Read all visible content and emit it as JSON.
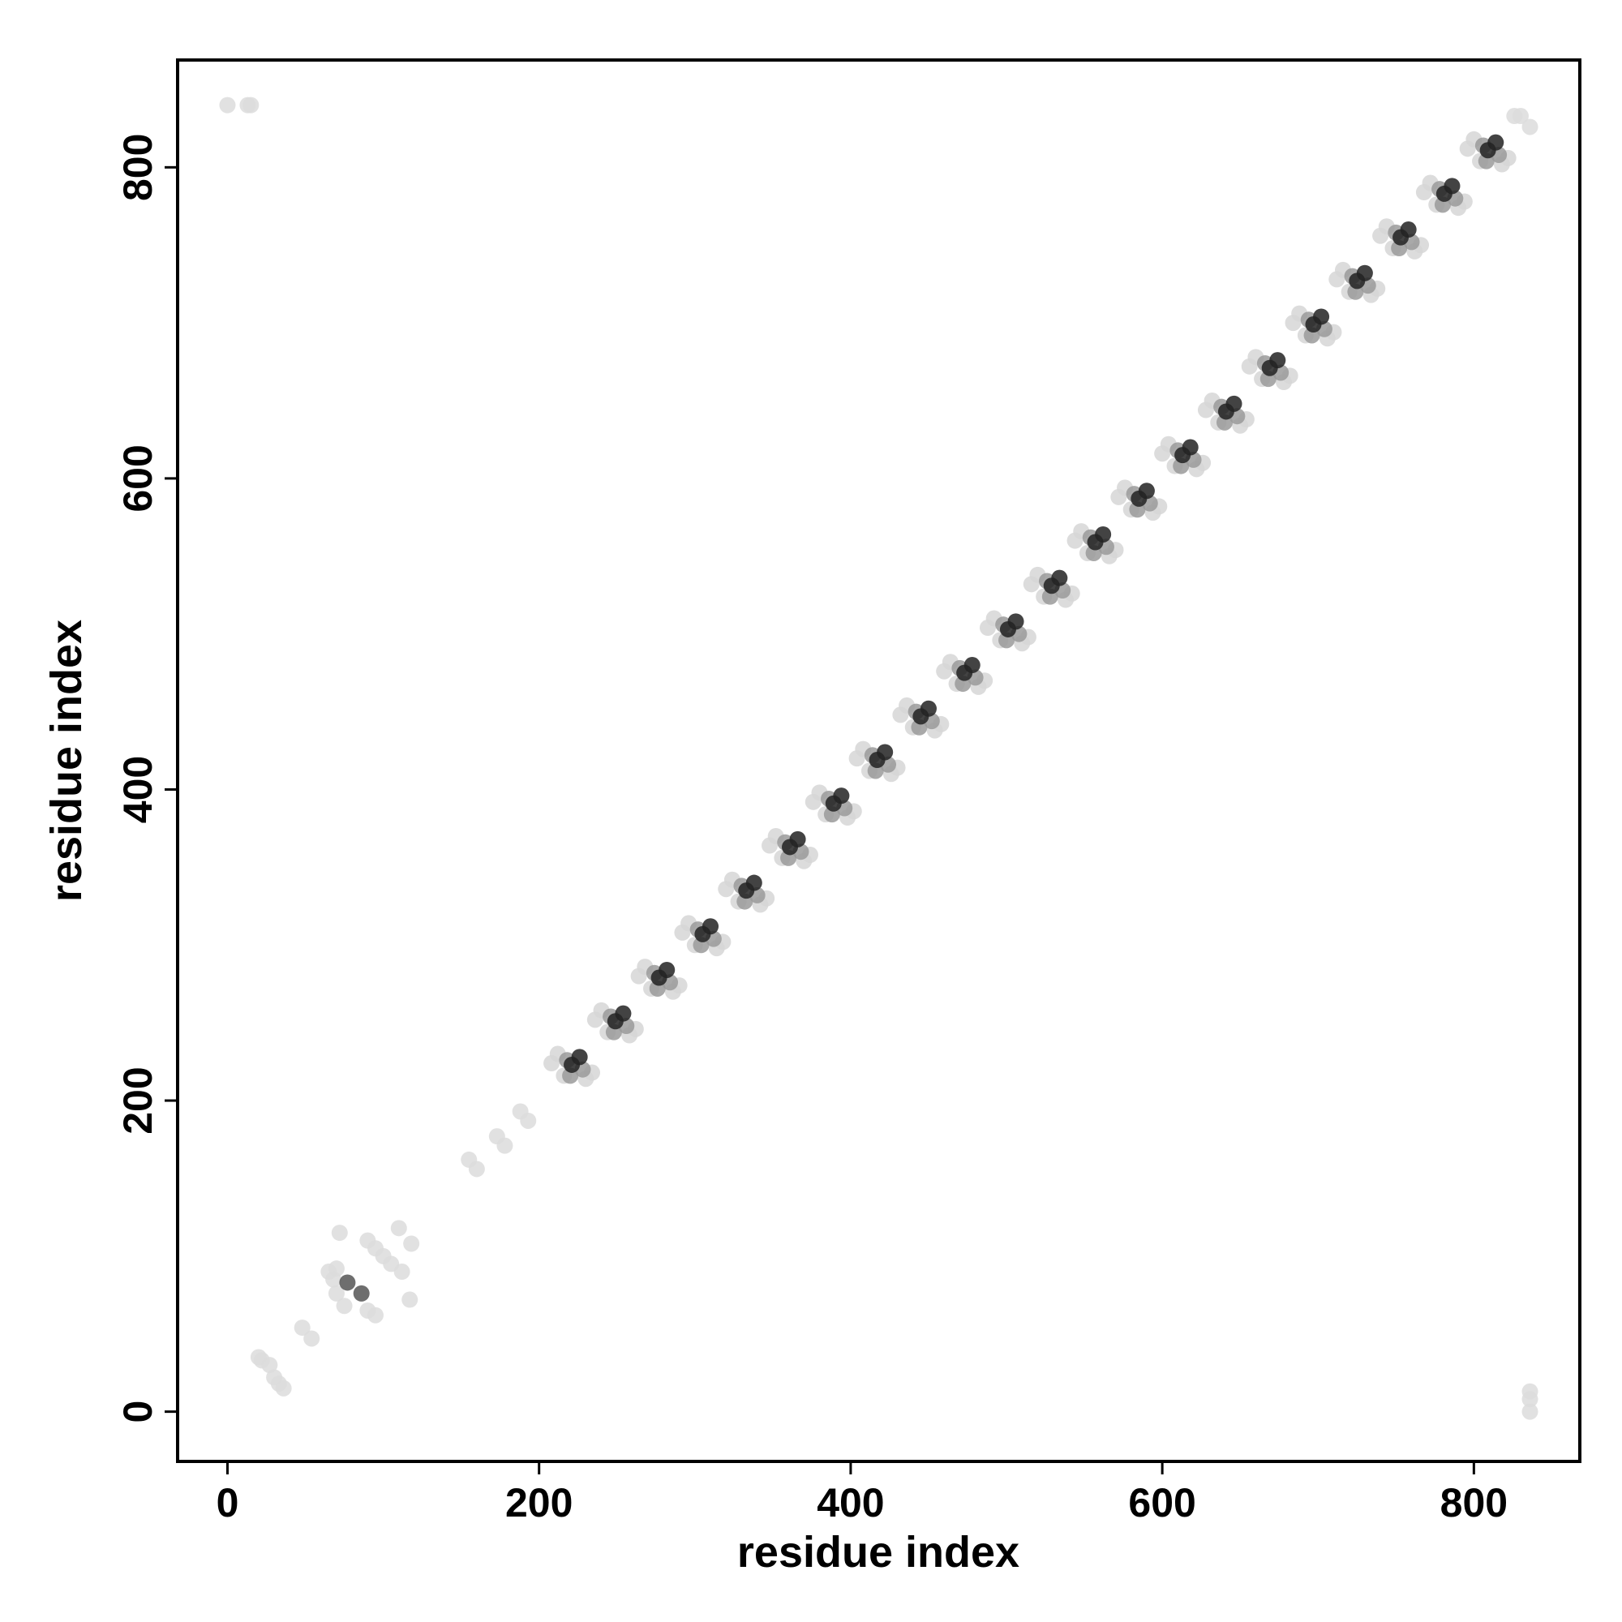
{
  "chart_data": {
    "type": "scatter",
    "x_label": "residue index",
    "y_label": "residue index",
    "xlim": [
      -32,
      868
    ],
    "ylim": [
      -32,
      869
    ],
    "xticks": [
      0,
      200,
      400,
      600,
      800
    ],
    "yticks": [
      0,
      200,
      400,
      600,
      800
    ],
    "series": [
      {
        "color": "#d6d6d6",
        "x": [
          212,
          216,
          230,
          234,
          208,
          240,
          244,
          258,
          262,
          236,
          268,
          272,
          286,
          290,
          264,
          296,
          300,
          314,
          318,
          292,
          324,
          328,
          342,
          346,
          320,
          352,
          356,
          370,
          374,
          348,
          380,
          384,
          398,
          402,
          376,
          408,
          412,
          426,
          430,
          404,
          436,
          440,
          454,
          458,
          432,
          464,
          468,
          482,
          486,
          460,
          492,
          496,
          510,
          514,
          488,
          520,
          524,
          538,
          542,
          516,
          548,
          552,
          566,
          570,
          544,
          576,
          580,
          594,
          598,
          572,
          604,
          608,
          622,
          626,
          600,
          632,
          636,
          650,
          654,
          628,
          660,
          664,
          678,
          682,
          656,
          688,
          692,
          706,
          710,
          684,
          716,
          720,
          734,
          738,
          712,
          744,
          748,
          762,
          766,
          740,
          772,
          776,
          790,
          794,
          768,
          800,
          804,
          818,
          822,
          796
        ],
        "y": [
          230,
          216,
          214,
          218,
          224,
          258,
          244,
          242,
          246,
          252,
          286,
          272,
          270,
          274,
          280,
          314,
          300,
          298,
          302,
          308,
          342,
          328,
          326,
          330,
          336,
          370,
          356,
          354,
          358,
          364,
          398,
          384,
          382,
          386,
          392,
          426,
          412,
          410,
          414,
          420,
          454,
          440,
          438,
          442,
          448,
          482,
          468,
          466,
          470,
          476,
          510,
          496,
          494,
          498,
          504,
          538,
          524,
          522,
          526,
          532,
          566,
          552,
          550,
          554,
          560,
          594,
          580,
          578,
          582,
          588,
          622,
          608,
          606,
          610,
          616,
          650,
          636,
          634,
          638,
          644,
          678,
          664,
          662,
          666,
          672,
          706,
          692,
          690,
          694,
          700,
          734,
          720,
          718,
          722,
          728,
          762,
          748,
          746,
          750,
          756,
          790,
          776,
          774,
          778,
          784,
          818,
          804,
          802,
          806,
          812
        ]
      },
      {
        "color": "#dcdcdc",
        "x": [
          0,
          13,
          15,
          836,
          836,
          836,
          20,
          22,
          27,
          30,
          33,
          36,
          48,
          54,
          155,
          160,
          173,
          178,
          188,
          193,
          65,
          68,
          70,
          75,
          72,
          90,
          95,
          100,
          105,
          110,
          112,
          118,
          117,
          95,
          90,
          70,
          826,
          830,
          836
        ],
        "y": [
          840,
          840,
          840,
          8,
          13,
          0,
          35,
          33,
          30,
          22,
          18,
          15,
          54,
          47,
          162,
          156,
          177,
          171,
          193,
          187,
          90,
          85,
          76,
          68,
          115,
          110,
          105,
          100,
          95,
          118,
          90,
          108,
          72,
          62,
          65,
          92,
          833,
          833,
          826
        ]
      },
      {
        "color": "#9a9a9a",
        "x": [
          218,
          228,
          220,
          246,
          256,
          248,
          274,
          284,
          276,
          302,
          312,
          304,
          330,
          340,
          332,
          358,
          368,
          360,
          386,
          396,
          388,
          414,
          424,
          416,
          442,
          452,
          444,
          470,
          480,
          472,
          498,
          508,
          500,
          526,
          536,
          528,
          554,
          564,
          556,
          582,
          592,
          584,
          610,
          620,
          612,
          638,
          648,
          640,
          666,
          676,
          668,
          694,
          704,
          696,
          722,
          732,
          724,
          750,
          760,
          752,
          778,
          788,
          780,
          806,
          816,
          808
        ],
        "y": [
          226,
          220,
          216,
          254,
          248,
          244,
          282,
          276,
          272,
          310,
          304,
          300,
          338,
          332,
          328,
          366,
          360,
          356,
          394,
          388,
          384,
          422,
          416,
          412,
          450,
          444,
          440,
          478,
          472,
          468,
          506,
          500,
          496,
          534,
          528,
          524,
          562,
          556,
          552,
          590,
          584,
          580,
          618,
          612,
          608,
          646,
          640,
          636,
          674,
          668,
          664,
          702,
          696,
          692,
          730,
          724,
          720,
          758,
          752,
          748,
          786,
          780,
          776,
          814,
          808,
          804
        ]
      },
      {
        "color": "#555555",
        "x": [
          77,
          86
        ],
        "y": [
          83,
          76
        ]
      },
      {
        "color": "#222222",
        "x": [
          221,
          226,
          249,
          254,
          277,
          282,
          305,
          310,
          333,
          338,
          361,
          366,
          389,
          394,
          417,
          422,
          445,
          450,
          473,
          478,
          501,
          506,
          529,
          534,
          557,
          562,
          585,
          590,
          613,
          618,
          641,
          646,
          669,
          674,
          697,
          702,
          725,
          730,
          753,
          758,
          781,
          786,
          809,
          814
        ],
        "y": [
          223,
          228,
          251,
          256,
          279,
          284,
          307,
          312,
          335,
          340,
          363,
          368,
          391,
          396,
          419,
          424,
          447,
          452,
          475,
          480,
          503,
          508,
          531,
          536,
          559,
          564,
          587,
          592,
          615,
          620,
          643,
          648,
          671,
          676,
          699,
          704,
          727,
          732,
          755,
          760,
          783,
          788,
          811,
          816
        ]
      }
    ]
  }
}
